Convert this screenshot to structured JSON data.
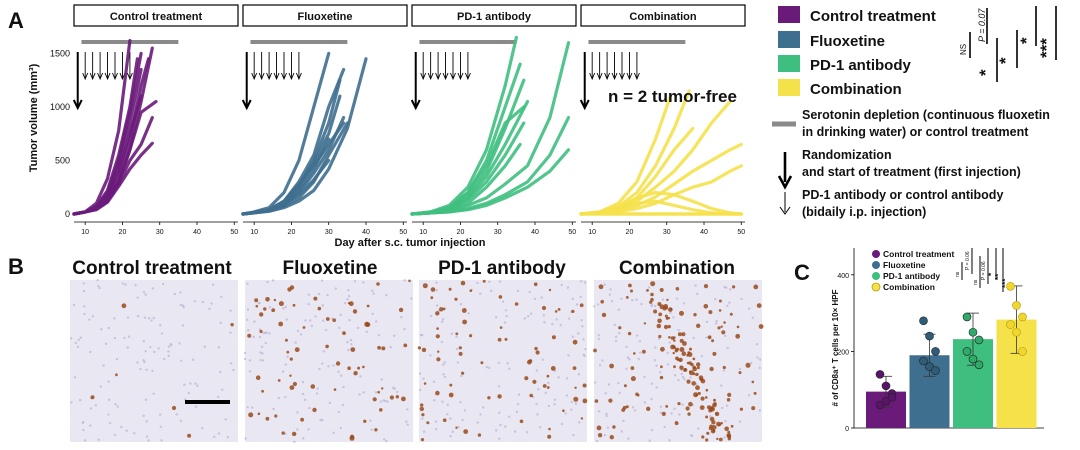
{
  "panel_letters": {
    "a": "A",
    "b": "B",
    "c": "C"
  },
  "groups": [
    "Control treatment",
    "Fluoxetine",
    "PD-1 antibody",
    "Combination"
  ],
  "colors": {
    "control": "#6a1b7a",
    "fluoxetine": "#3f6f8f",
    "pd1": "#3fbf7f",
    "combination": "#f5e14a",
    "depletion_bar": "#8a8a8a",
    "ihc_background": "#e9e7f2",
    "ihc_stain": "#9a4a1a"
  },
  "panel_a": {
    "ylabel": "Tumor volume (mm³)",
    "xlabel": "Day after s.c. tumor injection",
    "annotation": "n = 2 tumor-free",
    "legend_items": [
      {
        "label": "Control treatment",
        "color": "#6a1b7a"
      },
      {
        "label": "Fluoxetine",
        "color": "#3f6f8f"
      },
      {
        "label": "PD-1 antibody",
        "color": "#3fbf7f"
      },
      {
        "label": "Combination",
        "color": "#f5e14a"
      }
    ],
    "stats": {
      "ns": "NS",
      "p_value": "P = 0.07",
      "star1": "*",
      "star2": "*",
      "star3": "*",
      "star4": "***"
    },
    "key": {
      "gray_line_line1": "Serotonin depletion (continuous fluoxetin",
      "gray_line_line2": "in drinking water) or control treatment",
      "thick_arrow_line1": "Randomization",
      "thick_arrow_line2": "and start of treatment (first injection)",
      "thin_arrow_line1": "PD-1 antibody or control antibody",
      "thin_arrow_line2": "(bidaily i.p. injection)"
    }
  },
  "panel_b": {
    "titles": [
      "Control treatment",
      "Fluoxetine",
      "PD-1 antibody",
      "Combination"
    ]
  },
  "panel_c": {
    "ylabel": "# of CD8a⁺ T cells per 10× HPF",
    "legend": [
      "Control treatment",
      "Fluoxetine",
      "PD-1 antibody",
      "Combination"
    ],
    "stats": {
      "ns1": "ns",
      "p_value1": "P = 0.06",
      "ns2": "ns",
      "p_value2": "P = 0.06",
      "s1": "*",
      "s2": "**",
      "s3": "***"
    }
  },
  "chart_data": [
    {
      "type": "line",
      "title": "Control treatment",
      "xlabel": "Day after s.c. tumor injection",
      "ylabel": "Tumor volume (mm³)",
      "xlim": [
        7,
        51
      ],
      "ylim": [
        0,
        1700
      ],
      "x_ticks": [
        10,
        20,
        30,
        40,
        50
      ],
      "y_ticks": [
        0,
        500,
        1000,
        1500
      ],
      "grid": false,
      "depletion_bar_days": [
        8,
        35
      ],
      "randomization_day": 8,
      "injection_days": [
        10,
        12,
        14,
        16,
        18,
        20,
        22
      ],
      "series": [
        {
          "x": [
            7,
            10,
            13,
            16,
            19,
            22
          ],
          "y": [
            0,
            20,
            100,
            330,
            780,
            1620
          ]
        },
        {
          "x": [
            7,
            10,
            13,
            16,
            19,
            22,
            25
          ],
          "y": [
            0,
            20,
            60,
            200,
            500,
            950,
            1500
          ]
        },
        {
          "x": [
            7,
            10,
            13,
            16,
            19,
            22,
            25,
            28
          ],
          "y": [
            0,
            20,
            50,
            150,
            300,
            600,
            1050,
            1550
          ]
        },
        {
          "x": [
            7,
            10,
            13,
            16,
            19,
            22,
            25
          ],
          "y": [
            0,
            20,
            60,
            180,
            450,
            850,
            1350
          ]
        },
        {
          "x": [
            7,
            10,
            13,
            16,
            19,
            22,
            25,
            27
          ],
          "y": [
            0,
            20,
            50,
            160,
            350,
            700,
            1200,
            1450
          ]
        },
        {
          "x": [
            7,
            10,
            13,
            16,
            19,
            22,
            25,
            29
          ],
          "y": [
            0,
            20,
            45,
            130,
            300,
            600,
            950,
            1050
          ]
        },
        {
          "x": [
            7,
            10,
            13,
            16,
            19,
            22,
            25
          ],
          "y": [
            0,
            20,
            55,
            160,
            400,
            750,
            1100
          ]
        },
        {
          "x": [
            7,
            10,
            13,
            16,
            19,
            22,
            25,
            28
          ],
          "y": [
            0,
            20,
            45,
            120,
            280,
            500,
            650,
            900
          ]
        },
        {
          "x": [
            7,
            10,
            13,
            16,
            19,
            22,
            25,
            28
          ],
          "y": [
            0,
            20,
            40,
            110,
            260,
            420,
            550,
            660
          ]
        },
        {
          "x": [
            7,
            10,
            13,
            16,
            19,
            22,
            24
          ],
          "y": [
            0,
            20,
            70,
            220,
            550,
            1000,
            1450
          ]
        }
      ]
    },
    {
      "type": "line",
      "title": "Fluoxetine",
      "xlabel": "Day after s.c. tumor injection",
      "ylabel": "Tumor volume (mm³)",
      "xlim": [
        7,
        51
      ],
      "ylim": [
        0,
        1700
      ],
      "x_ticks": [
        10,
        20,
        30,
        40,
        50
      ],
      "y_ticks": [
        0,
        500,
        1000,
        1500
      ],
      "grid": false,
      "depletion_bar_days": [
        0,
        35
      ],
      "randomization_day": 8,
      "injection_days": [
        10,
        12,
        14,
        16,
        18,
        20,
        22
      ],
      "series": [
        {
          "x": [
            7,
            10,
            14,
            18,
            22,
            26,
            30
          ],
          "y": [
            0,
            20,
            60,
            200,
            500,
            1000,
            1500
          ]
        },
        {
          "x": [
            7,
            10,
            14,
            18,
            22,
            26,
            30,
            34
          ],
          "y": [
            0,
            15,
            40,
            120,
            300,
            550,
            1000,
            1350
          ]
        },
        {
          "x": [
            7,
            10,
            14,
            18,
            22,
            26,
            30,
            33
          ],
          "y": [
            0,
            15,
            40,
            110,
            260,
            500,
            850,
            1250
          ]
        },
        {
          "x": [
            7,
            10,
            14,
            18,
            22,
            26,
            30,
            33
          ],
          "y": [
            0,
            15,
            35,
            100,
            250,
            480,
            750,
            1100
          ]
        },
        {
          "x": [
            7,
            10,
            14,
            18,
            22,
            26,
            30
          ],
          "y": [
            0,
            15,
            35,
            90,
            220,
            420,
            700
          ]
        },
        {
          "x": [
            7,
            10,
            14,
            18,
            22,
            26,
            30,
            34
          ],
          "y": [
            0,
            15,
            30,
            80,
            200,
            380,
            600,
            900
          ]
        },
        {
          "x": [
            7,
            10,
            14,
            18,
            22,
            26,
            30,
            35
          ],
          "y": [
            0,
            10,
            30,
            70,
            150,
            300,
            550,
            850
          ]
        },
        {
          "x": [
            7,
            10,
            14,
            18,
            22,
            26,
            30,
            35,
            40
          ],
          "y": [
            0,
            10,
            25,
            60,
            120,
            220,
            420,
            800,
            1450
          ]
        },
        {
          "x": [
            7,
            10,
            14,
            18,
            22,
            26,
            30,
            34
          ],
          "y": [
            0,
            15,
            40,
            120,
            280,
            450,
            650,
            850
          ]
        },
        {
          "x": [
            7,
            10,
            14,
            18,
            22,
            26,
            30
          ],
          "y": [
            0,
            15,
            30,
            90,
            180,
            320,
            500
          ]
        }
      ]
    },
    {
      "type": "line",
      "title": "PD-1 antibody",
      "xlabel": "Day after s.c. tumor injection",
      "ylabel": "Tumor volume (mm³)",
      "xlim": [
        7,
        51
      ],
      "ylim": [
        0,
        1700
      ],
      "x_ticks": [
        10,
        20,
        30,
        40,
        50
      ],
      "y_ticks": [
        0,
        500,
        1000,
        1500
      ],
      "grid": false,
      "depletion_bar_days": [
        8,
        35
      ],
      "randomization_day": 8,
      "injection_days": [
        10,
        12,
        14,
        16,
        18,
        20,
        22
      ],
      "series": [
        {
          "x": [
            7,
            12,
            17,
            22,
            27,
            32,
            35
          ],
          "y": [
            0,
            20,
            80,
            250,
            600,
            1200,
            1650
          ]
        },
        {
          "x": [
            7,
            12,
            17,
            22,
            27,
            32,
            36
          ],
          "y": [
            0,
            15,
            60,
            200,
            500,
            1000,
            1400
          ]
        },
        {
          "x": [
            7,
            12,
            17,
            22,
            27,
            32,
            37
          ],
          "y": [
            0,
            15,
            50,
            160,
            400,
            800,
            1250
          ]
        },
        {
          "x": [
            7,
            12,
            17,
            22,
            27,
            32,
            38
          ],
          "y": [
            0,
            10,
            40,
            150,
            350,
            650,
            1050
          ]
        },
        {
          "x": [
            7,
            12,
            17,
            22,
            27,
            32,
            37
          ],
          "y": [
            0,
            10,
            40,
            130,
            300,
            550,
            850
          ]
        },
        {
          "x": [
            7,
            12,
            17,
            22,
            27,
            32,
            36
          ],
          "y": [
            0,
            10,
            30,
            100,
            250,
            450,
            650
          ]
        },
        {
          "x": [
            7,
            12,
            17,
            22,
            27,
            32,
            37
          ],
          "y": [
            0,
            15,
            60,
            200,
            450,
            850,
            1000
          ]
        },
        {
          "x": [
            7,
            12,
            17,
            22,
            27,
            32,
            38,
            44,
            49
          ],
          "y": [
            0,
            10,
            30,
            80,
            150,
            280,
            450,
            900,
            1600
          ]
        },
        {
          "x": [
            7,
            12,
            17,
            22,
            27,
            32,
            38,
            44,
            49
          ],
          "y": [
            0,
            10,
            20,
            50,
            100,
            180,
            300,
            550,
            900
          ]
        },
        {
          "x": [
            7,
            12,
            17,
            22,
            27,
            32,
            38,
            44,
            49
          ],
          "y": [
            0,
            10,
            20,
            40,
            80,
            150,
            250,
            400,
            600
          ]
        }
      ]
    },
    {
      "type": "line",
      "title": "Combination",
      "xlabel": "Day after s.c. tumor injection",
      "ylabel": "Tumor volume (mm³)",
      "xlim": [
        7,
        51
      ],
      "ylim": [
        0,
        1700
      ],
      "x_ticks": [
        10,
        20,
        30,
        40,
        50
      ],
      "y_ticks": [
        0,
        500,
        1000,
        1500
      ],
      "grid": false,
      "depletion_bar_days": [
        8,
        35
      ],
      "randomization_day": 8,
      "injection_days": [
        10,
        12,
        14,
        16,
        18,
        20,
        22
      ],
      "series": [
        {
          "x": [
            7,
            12,
            17,
            22,
            27,
            31
          ],
          "y": [
            0,
            20,
            100,
            300,
            700,
            1100
          ]
        },
        {
          "x": [
            7,
            12,
            17,
            22,
            27,
            32,
            36
          ],
          "y": [
            0,
            15,
            70,
            200,
            450,
            800,
            1150
          ]
        },
        {
          "x": [
            7,
            12,
            17,
            22,
            27,
            32,
            37,
            42,
            47
          ],
          "y": [
            0,
            10,
            40,
            120,
            250,
            400,
            600,
            850,
            1050
          ]
        },
        {
          "x": [
            7,
            12,
            17,
            22,
            27,
            32,
            37,
            42,
            47,
            50
          ],
          "y": [
            0,
            10,
            30,
            80,
            160,
            280,
            400,
            500,
            600,
            650
          ]
        },
        {
          "x": [
            7,
            12,
            17,
            22,
            27,
            32,
            37,
            42,
            47,
            50
          ],
          "y": [
            0,
            10,
            20,
            50,
            100,
            180,
            250,
            300,
            400,
            450
          ]
        },
        {
          "x": [
            7,
            12,
            17,
            22,
            27,
            32,
            37
          ],
          "y": [
            0,
            10,
            50,
            150,
            350,
            600,
            800
          ]
        },
        {
          "x": [
            7,
            12,
            17,
            22,
            27,
            32,
            37,
            42,
            47,
            50
          ],
          "y": [
            0,
            15,
            60,
            150,
            200,
            180,
            120,
            50,
            10,
            0
          ]
        },
        {
          "x": [
            7,
            12,
            17,
            22,
            27,
            32,
            37,
            42,
            47,
            50
          ],
          "y": [
            0,
            10,
            40,
            100,
            120,
            80,
            40,
            10,
            0,
            0
          ]
        },
        {
          "x": [
            7,
            50
          ],
          "y": [
            0,
            0
          ]
        },
        {
          "x": [
            7,
            50
          ],
          "y": [
            0,
            0
          ]
        }
      ]
    },
    {
      "type": "bar",
      "ylabel": "# of CD8a⁺ T cells per 10× HPF",
      "categories": [
        "Control treatment",
        "Fluoxetine",
        "PD-1 antibody",
        "Combination"
      ],
      "values": [
        95,
        190,
        232,
        283
      ],
      "error": [
        40,
        55,
        68,
        88
      ],
      "points": [
        [
          140,
          110,
          90,
          60,
          70,
          80
        ],
        [
          280,
          240,
          200,
          175,
          160,
          150
        ],
        [
          290,
          250,
          230,
          200,
          180,
          165
        ],
        [
          370,
          320,
          290,
          270,
          250,
          200
        ]
      ],
      "y_ticks": [
        0,
        200,
        400
      ],
      "ylim": [
        0,
        470
      ],
      "grid": false
    }
  ]
}
